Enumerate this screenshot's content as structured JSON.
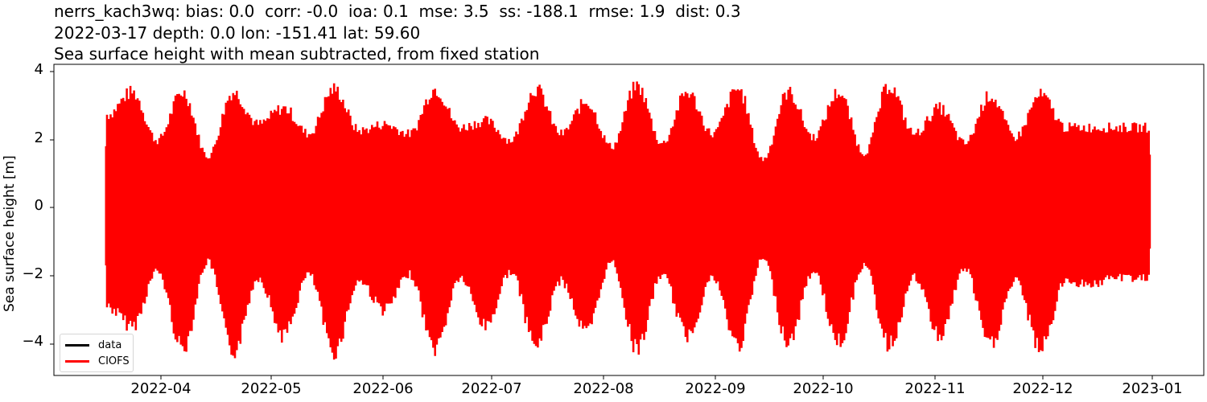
{
  "chart_data": {
    "type": "line",
    "title_lines": [
      "nerrs_kach3wq: bias: 0.0  corr: -0.0  ioa: 0.1  mse: 3.5  ss: -188.1  rmse: 1.9  dist: 0.3",
      "2022-03-17 depth: 0.0 lon: -151.41 lat: 59.60",
      "Sea surface height with mean subtracted, from fixed station"
    ],
    "stats": {
      "station": "nerrs_kach3wq",
      "bias": 0.0,
      "corr": -0.0,
      "ioa": 0.1,
      "mse": 3.5,
      "ss": -188.1,
      "rmse": 1.9,
      "dist": 0.3
    },
    "meta": {
      "date": "2022-03-17",
      "depth": 0.0,
      "lon": -151.41,
      "lat": 59.6
    },
    "xlabel": "",
    "ylabel": "Sea surface height [m]",
    "ylim": [
      -4.9,
      4.2
    ],
    "yticks": [
      4,
      2,
      0,
      -2,
      -4
    ],
    "yticklabels": [
      "4",
      "2",
      "0",
      "−2",
      "−4"
    ],
    "xticks": [
      "2022-04",
      "2022-05",
      "2022-06",
      "2022-07",
      "2022-08",
      "2022-09",
      "2022-10",
      "2022-11",
      "2022-12",
      "2023-01"
    ],
    "xlim": [
      "2022-03-02",
      "2023-01-15"
    ],
    "grid": false,
    "legend_position": "lower left",
    "series": [
      {
        "name": "data",
        "color": "#000000",
        "values": []
      },
      {
        "name": "CIOFS",
        "color": "#ff0000",
        "description": "Semi-diurnal tidal signal with spring-neap modulation, 2022-03-17 to 2022-12-31",
        "envelope_days_from_start": [
          0,
          7,
          14,
          21,
          28,
          35,
          42,
          49,
          56,
          63,
          70,
          77,
          84,
          91,
          98,
          105,
          112,
          119,
          126,
          133,
          140,
          147,
          154,
          161,
          168,
          175,
          182,
          189,
          196,
          203,
          210,
          217,
          224,
          231,
          238,
          245,
          252,
          259,
          266,
          273,
          280,
          287,
          289
        ],
        "envelope_max": [
          2.9,
          3.6,
          2.1,
          3.6,
          1.6,
          3.6,
          2.6,
          3.1,
          2.3,
          3.7,
          2.4,
          2.6,
          2.3,
          3.7,
          2.5,
          2.7,
          2.1,
          3.7,
          2.3,
          3.3,
          1.9,
          3.8,
          2.0,
          3.6,
          2.3,
          3.7,
          1.5,
          3.6,
          2.2,
          3.6,
          1.7,
          3.8,
          2.3,
          3.1,
          2.0,
          3.5,
          2.2,
          3.5,
          2.5,
          2.5,
          2.5,
          2.5,
          2.5
        ],
        "envelope_min": [
          -3.1,
          -3.7,
          -2.0,
          -4.4,
          -1.7,
          -4.5,
          -2.2,
          -4.0,
          -2.1,
          -4.5,
          -2.3,
          -3.2,
          -2.1,
          -4.4,
          -2.2,
          -3.7,
          -2.0,
          -4.3,
          -2.3,
          -3.9,
          -1.7,
          -4.4,
          -2.1,
          -4.0,
          -2.2,
          -4.3,
          -1.6,
          -4.2,
          -2.0,
          -4.2,
          -1.8,
          -4.3,
          -2.2,
          -4.0,
          -1.9,
          -4.3,
          -2.3,
          -4.4,
          -2.3,
          -2.4,
          -2.2,
          -2.2,
          -2.2
        ]
      }
    ]
  },
  "legend": {
    "items": [
      {
        "label": "data",
        "color": "#000000"
      },
      {
        "label": "CIOFS",
        "color": "#ff0000"
      }
    ]
  }
}
